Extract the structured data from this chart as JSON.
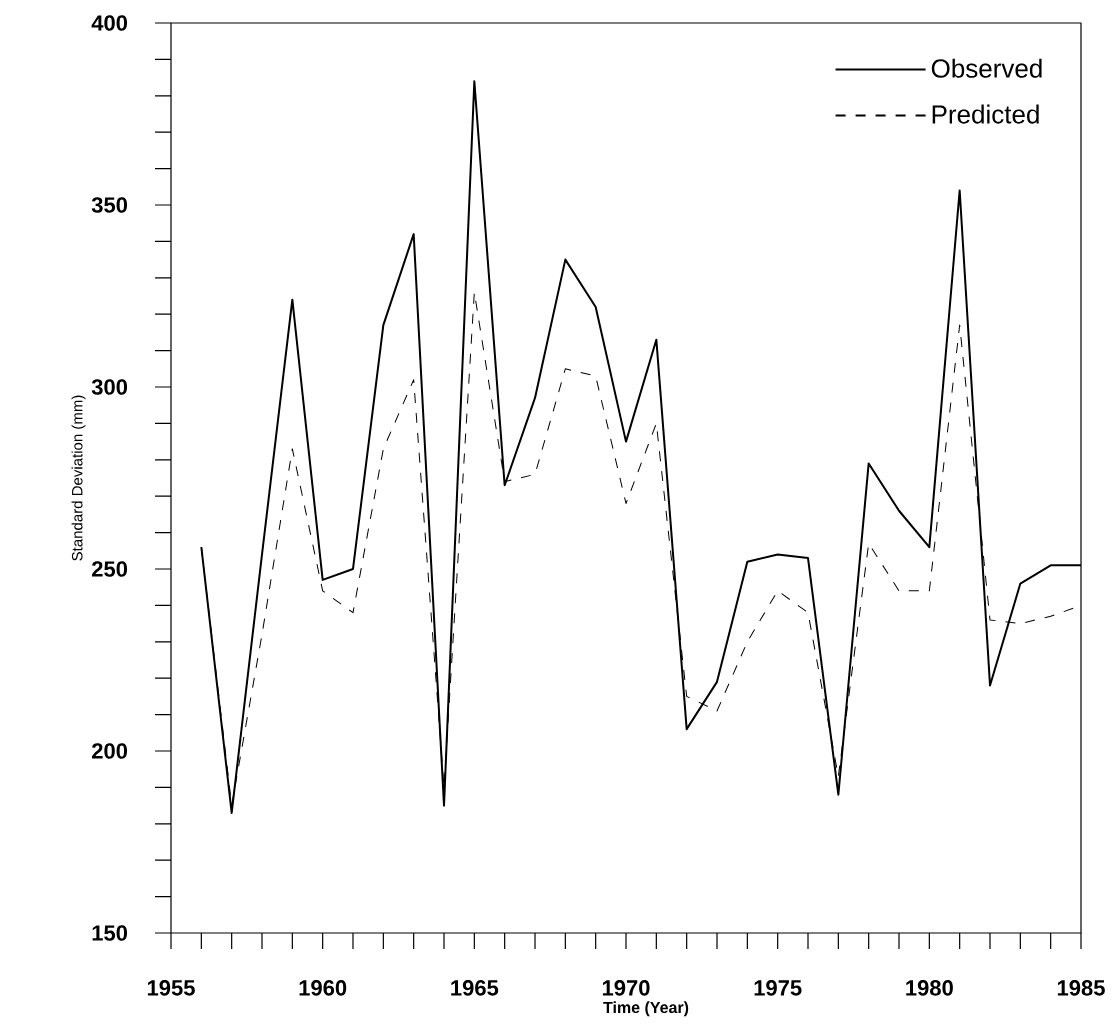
{
  "chart_data": {
    "type": "line",
    "xlabel": "Time (Year)",
    "ylabel": "Standard  Deviation (mm)",
    "x": [
      1956,
      1957,
      1958,
      1959,
      1960,
      1961,
      1962,
      1963,
      1964,
      1965,
      1966,
      1967,
      1968,
      1969,
      1970,
      1971,
      1972,
      1973,
      1974,
      1975,
      1976,
      1977,
      1978,
      1979,
      1980,
      1981,
      1982,
      1983,
      1984,
      1985
    ],
    "series": [
      {
        "name": "Observed",
        "color": "#000000",
        "line_style": "solid",
        "values": [
          256,
          183,
          254,
          324,
          247,
          250,
          317,
          342,
          185,
          384,
          273,
          297,
          335,
          322,
          285,
          313,
          206,
          219,
          252,
          254,
          253,
          188,
          279,
          266,
          256,
          354,
          218,
          246,
          251,
          251
        ]
      },
      {
        "name": "Predicted",
        "color": "#000000",
        "line_style": "dashed",
        "values": [
          256,
          185,
          232,
          283,
          244,
          238,
          283,
          302,
          190,
          326,
          274,
          276,
          305,
          303,
          268,
          290,
          215,
          211,
          230,
          244,
          238,
          193,
          257,
          244,
          244,
          317,
          236,
          235,
          237,
          240
        ]
      }
    ],
    "xlim": [
      1955,
      1985
    ],
    "ylim": [
      150,
      400
    ],
    "xticks": [
      1955,
      {
        "value": 1956,
        "label": null
      },
      {
        "value": 1957,
        "label": null
      },
      {
        "value": 1958,
        "label": null
      },
      {
        "value": 1959,
        "label": null
      },
      1960,
      {
        "value": 1961,
        "label": null
      },
      {
        "value": 1962,
        "label": null
      },
      {
        "value": 1963,
        "label": null
      },
      {
        "value": 1964,
        "label": null
      },
      1965,
      {
        "value": 1966,
        "label": null
      },
      {
        "value": 1967,
        "label": null
      },
      {
        "value": 1968,
        "label": null
      },
      {
        "value": 1969,
        "label": null
      },
      1970,
      {
        "value": 1971,
        "label": null
      },
      {
        "value": 1972,
        "label": null
      },
      {
        "value": 1973,
        "label": null
      },
      {
        "value": 1974,
        "label": null
      },
      1975,
      {
        "value": 1976,
        "label": null
      },
      {
        "value": 1977,
        "label": null
      },
      {
        "value": 1978,
        "label": null
      },
      {
        "value": 1979,
        "label": null
      },
      1980,
      {
        "value": 1981,
        "label": null
      },
      {
        "value": 1982,
        "label": null
      },
      {
        "value": 1983,
        "label": null
      },
      {
        "value": 1984,
        "label": null
      },
      1985
    ],
    "yticks": [
      150,
      {
        "value": 160,
        "label": null
      },
      {
        "value": 170,
        "label": null
      },
      {
        "value": 180,
        "label": null
      },
      {
        "value": 190,
        "label": null
      },
      200,
      {
        "value": 210,
        "label": null
      },
      {
        "value": 220,
        "label": null
      },
      {
        "value": 230,
        "label": null
      },
      {
        "value": 240,
        "label": null
      },
      250,
      {
        "value": 260,
        "label": null
      },
      {
        "value": 270,
        "label": null
      },
      {
        "value": 280,
        "label": null
      },
      {
        "value": 290,
        "label": null
      },
      300,
      {
        "value": 310,
        "label": null
      },
      {
        "value": 320,
        "label": null
      },
      {
        "value": 330,
        "label": null
      },
      {
        "value": 340,
        "label": null
      },
      350,
      {
        "value": 360,
        "label": null
      },
      {
        "value": 370,
        "label": null
      },
      {
        "value": 380,
        "label": null
      },
      {
        "value": 390,
        "label": null
      },
      400
    ],
    "legend": "top right",
    "grid": false
  }
}
